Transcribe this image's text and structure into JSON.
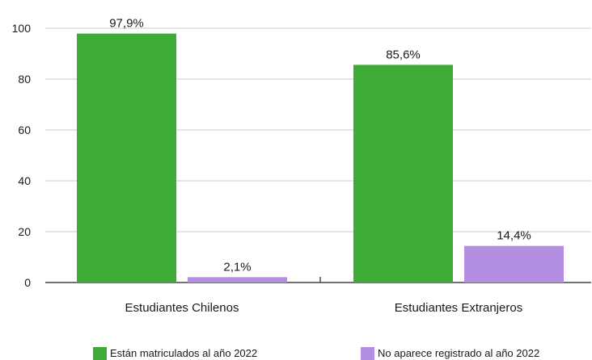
{
  "chart_data": {
    "type": "bar",
    "categories": [
      "Estudiantes Chilenos",
      "Estudiantes Extranjeros"
    ],
    "series": [
      {
        "name": "Están matriculados al año 2022",
        "values": [
          97.9,
          85.6
        ],
        "labels": [
          "97,9%",
          "85,6%"
        ],
        "color": "#3dab35"
      },
      {
        "name": "No aparece registrado al año 2022",
        "values": [
          2.1,
          14.4
        ],
        "labels": [
          "2,1%",
          "14,4%"
        ],
        "color": "#b48ee0"
      }
    ],
    "ylim": [
      0,
      100
    ],
    "yticks": [
      0,
      20,
      40,
      60,
      80,
      100
    ],
    "ytick_labels": [
      "0",
      "20",
      "40",
      "60",
      "80",
      "100"
    ],
    "grid": true,
    "gridline_color": "#c8c8c8",
    "legend_position": "bottom"
  }
}
